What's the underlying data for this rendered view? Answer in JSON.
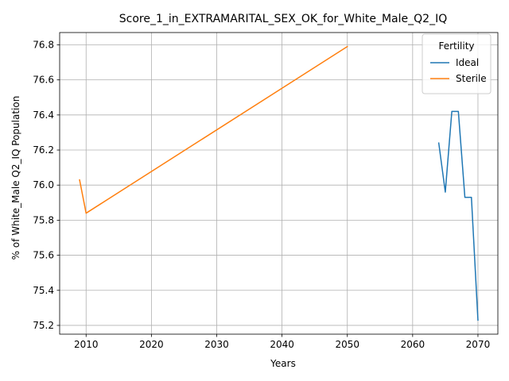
{
  "chart_data": {
    "type": "line",
    "title": "Score_1_in_EXTRAMARITAL_SEX_OK_for_White_Male_Q2_IQ",
    "xlabel": "Years",
    "ylabel": "% of White_Male Q2_IQ Population",
    "xlim": [
      2005.95,
      2073.05
    ],
    "ylim": [
      75.15,
      76.87
    ],
    "x_ticks": [
      2010,
      2020,
      2030,
      2040,
      2050,
      2060,
      2070
    ],
    "y_ticks": [
      75.2,
      75.4,
      75.6,
      75.8,
      76.0,
      76.2,
      76.4,
      76.6,
      76.8
    ],
    "grid": true,
    "legend": {
      "title": "Fertility",
      "placement": "top-right"
    },
    "series": [
      {
        "name": "Ideal",
        "color": "#1f77b4",
        "points": [
          [
            2064,
            76.24
          ],
          [
            2065,
            75.96
          ],
          [
            2066,
            76.42
          ],
          [
            2067,
            76.42
          ],
          [
            2068,
            75.93
          ],
          [
            2069,
            75.93
          ],
          [
            2070,
            75.23
          ]
        ]
      },
      {
        "name": "Sterile",
        "color": "#ff7f0e",
        "points": [
          [
            2009,
            76.03
          ],
          [
            2010,
            75.84
          ],
          [
            2050,
            76.79
          ]
        ]
      }
    ]
  }
}
